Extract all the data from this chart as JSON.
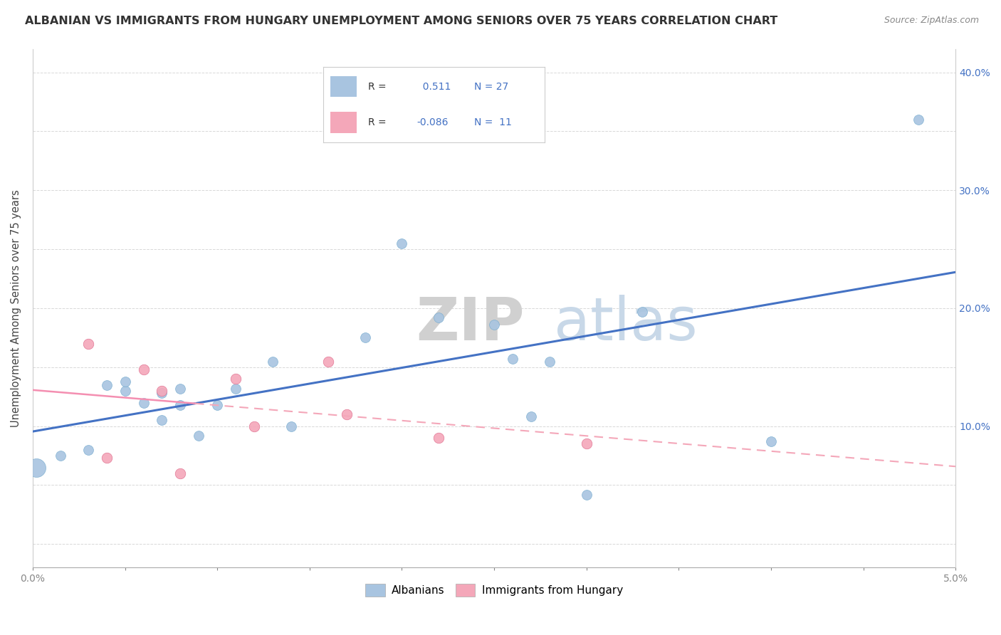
{
  "title": "ALBANIAN VS IMMIGRANTS FROM HUNGARY UNEMPLOYMENT AMONG SENIORS OVER 75 YEARS CORRELATION CHART",
  "source": "Source: ZipAtlas.com",
  "ylabel": "Unemployment Among Seniors over 75 years",
  "xlim": [
    0.0,
    0.05
  ],
  "ylim": [
    -0.02,
    0.42
  ],
  "x_ticks": [
    0.0,
    0.005,
    0.01,
    0.015,
    0.02,
    0.025,
    0.03,
    0.035,
    0.04,
    0.045,
    0.05
  ],
  "x_tick_labels": [
    "0.0%",
    "",
    "",
    "",
    "",
    "",
    "",
    "",
    "",
    "",
    "5.0%"
  ],
  "y_ticks": [
    0.0,
    0.05,
    0.1,
    0.15,
    0.2,
    0.25,
    0.3,
    0.35,
    0.4
  ],
  "y_tick_labels": [
    "",
    "",
    "10.0%",
    "",
    "20.0%",
    "",
    "30.0%",
    "",
    "40.0%"
  ],
  "albanians_x": [
    0.0002,
    0.0015,
    0.003,
    0.004,
    0.005,
    0.005,
    0.006,
    0.007,
    0.007,
    0.008,
    0.008,
    0.009,
    0.01,
    0.011,
    0.013,
    0.014,
    0.018,
    0.02,
    0.022,
    0.025,
    0.026,
    0.027,
    0.028,
    0.03,
    0.033,
    0.04,
    0.048
  ],
  "albanians_y": [
    0.065,
    0.075,
    0.08,
    0.135,
    0.13,
    0.138,
    0.12,
    0.105,
    0.128,
    0.118,
    0.132,
    0.092,
    0.118,
    0.132,
    0.155,
    0.1,
    0.175,
    0.255,
    0.192,
    0.186,
    0.157,
    0.108,
    0.155,
    0.042,
    0.197,
    0.087,
    0.36
  ],
  "albanians_size": [
    350,
    100,
    100,
    100,
    100,
    100,
    100,
    100,
    100,
    100,
    100,
    100,
    100,
    100,
    100,
    100,
    100,
    100,
    100,
    100,
    100,
    100,
    100,
    100,
    100,
    100,
    100
  ],
  "hungary_x": [
    0.003,
    0.004,
    0.006,
    0.007,
    0.008,
    0.011,
    0.012,
    0.016,
    0.017,
    0.022,
    0.03
  ],
  "hungary_y": [
    0.17,
    0.073,
    0.148,
    0.13,
    0.06,
    0.14,
    0.1,
    0.155,
    0.11,
    0.09,
    0.085
  ],
  "albanian_color": "#a8c4e0",
  "hungary_color": "#f4a7b9",
  "albanian_line_color": "#4472c4",
  "hungary_line_solid_color": "#f48fb1",
  "hungary_line_dash_color": "#f4a7b9",
  "albanian_R": 0.511,
  "albanian_N": 27,
  "hungary_R": -0.086,
  "hungary_N": 11,
  "background_color": "#ffffff",
  "grid_color": "#d8d8d8",
  "line_intercept_x": 0.013
}
